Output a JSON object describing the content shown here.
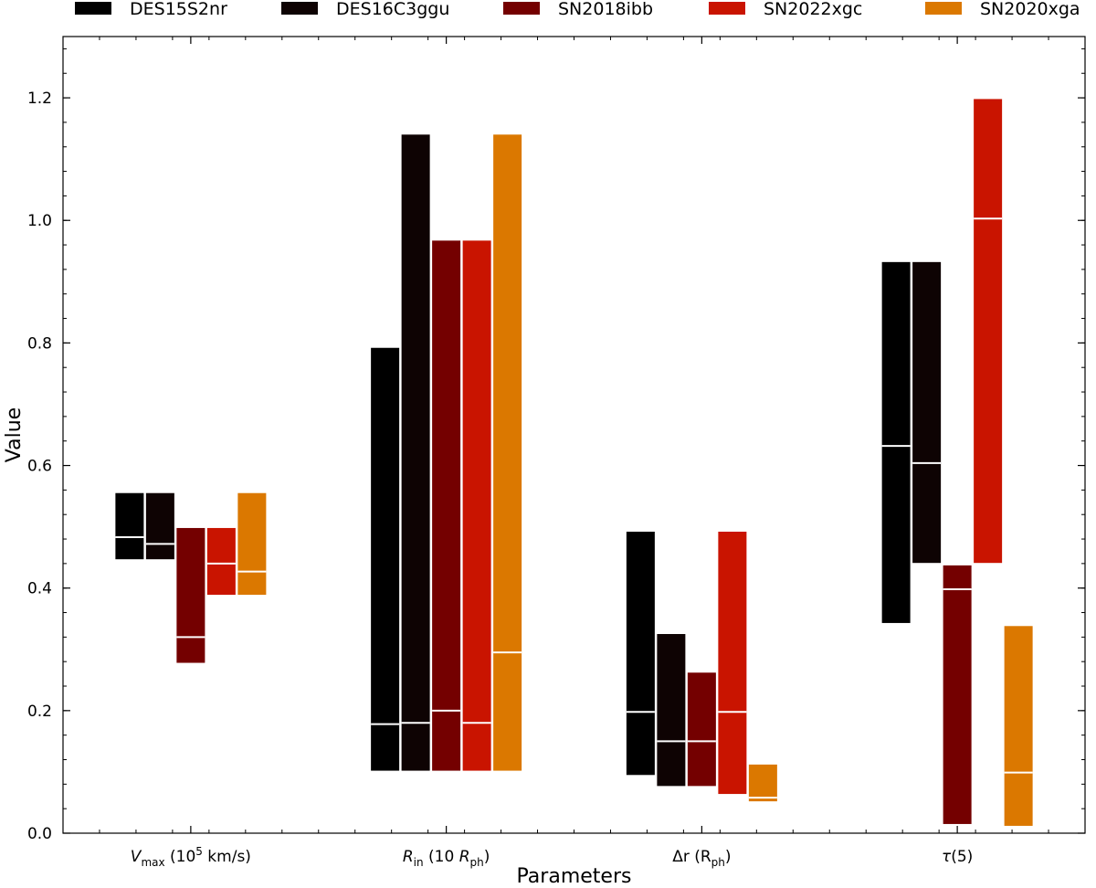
{
  "chart_data": {
    "type": "bar",
    "subtype": "floating-range",
    "xlabel": "Parameters",
    "ylabel": "Value",
    "ylim": [
      0.0,
      1.3
    ],
    "yticks": [
      0.0,
      0.2,
      0.4,
      0.6,
      0.8,
      1.0,
      1.2
    ],
    "ytick_labels": [
      "0.0",
      "0.2",
      "0.4",
      "0.6",
      "0.8",
      "1.0",
      "1.2"
    ],
    "categories": [
      {
        "main": "V",
        "sub": "max",
        "rest": "(10",
        "sup": "5",
        "tail": " km/s)"
      },
      {
        "main": "R",
        "sub": "in",
        "rest": "(10",
        "italic": " R",
        "sub2": "ph",
        "tail": ")"
      },
      {
        "main": "Δr",
        "rest": "(R",
        "sub2": "ph",
        "tail": ")"
      },
      {
        "main": "τ",
        "tail": "(5)"
      }
    ],
    "legend_position": "top",
    "series": [
      {
        "name": "DES15S2nr",
        "color": "#000000",
        "low": [
          0.447,
          0.102,
          0.095,
          0.343
        ],
        "mid": [
          0.483,
          0.178,
          0.198,
          0.632
        ],
        "high": [
          0.555,
          0.792,
          0.492,
          0.932
        ]
      },
      {
        "name": "DES16C3ggu",
        "color": "#0e0303",
        "low": [
          0.447,
          0.102,
          0.077,
          0.441
        ],
        "mid": [
          0.472,
          0.18,
          0.15,
          0.604
        ],
        "high": [
          0.555,
          1.14,
          0.325,
          0.932
        ]
      },
      {
        "name": "SN2018ibb",
        "color": "#740000",
        "low": [
          0.278,
          0.102,
          0.077,
          0.015
        ],
        "mid": [
          0.32,
          0.2,
          0.15,
          0.398
        ],
        "high": [
          0.498,
          0.967,
          0.262,
          0.437
        ]
      },
      {
        "name": "SN2022xgc",
        "color": "#c91400",
        "low": [
          0.389,
          0.102,
          0.064,
          0.441
        ],
        "mid": [
          0.44,
          0.18,
          0.198,
          1.003
        ],
        "high": [
          0.498,
          0.967,
          0.492,
          1.198
        ]
      },
      {
        "name": "SN2020xga",
        "color": "#db7800",
        "low": [
          0.389,
          0.102,
          0.052,
          0.012
        ],
        "mid": [
          0.427,
          0.295,
          0.058,
          0.099
        ],
        "high": [
          0.555,
          1.14,
          0.112,
          0.338
        ]
      }
    ]
  }
}
